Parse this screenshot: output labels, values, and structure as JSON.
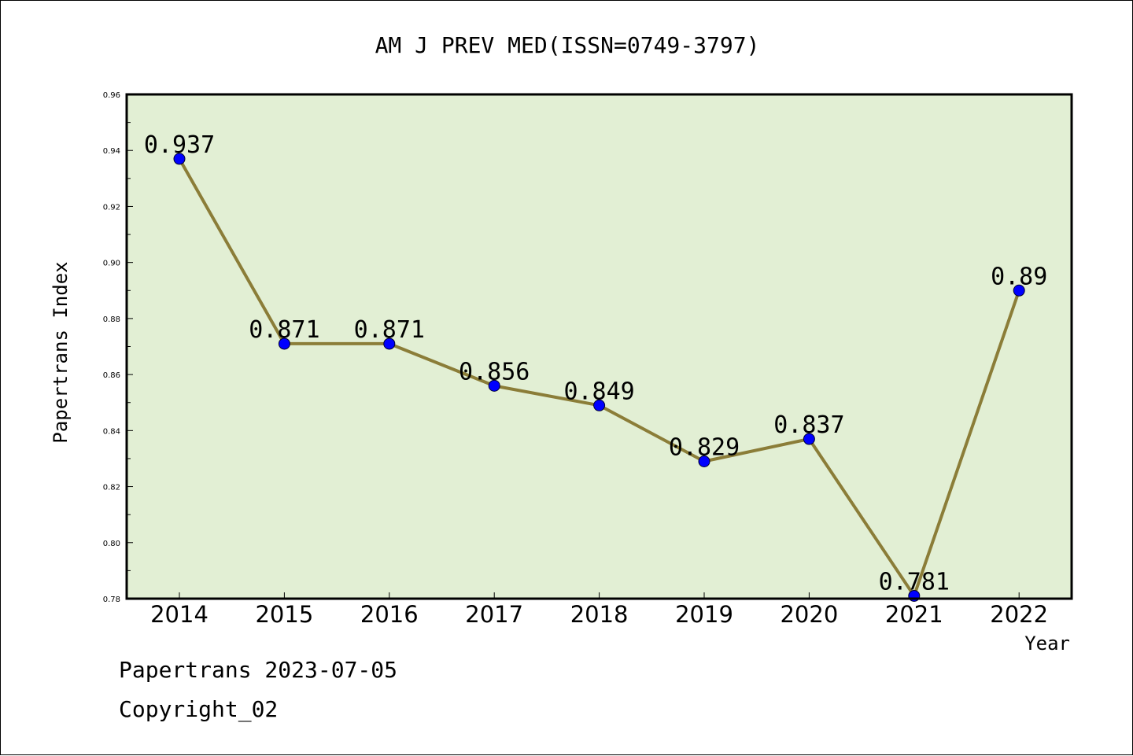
{
  "colors": {
    "plot_background": "#e2efd4",
    "line": "#8b7d38",
    "marker": "#0000ff",
    "axis": "#000000"
  },
  "footer": {
    "line1": "Papertrans 2023-07-05",
    "line2": "Copyright_02"
  },
  "chart_data": {
    "type": "line",
    "title": "AM J PREV MED(ISSN=0749-3797)",
    "xlabel": "Year",
    "ylabel": "Papertrans Index",
    "categories": [
      "2014",
      "2015",
      "2016",
      "2017",
      "2018",
      "2019",
      "2020",
      "2021",
      "2022"
    ],
    "values": [
      0.937,
      0.871,
      0.871,
      0.856,
      0.849,
      0.829,
      0.837,
      0.781,
      0.89
    ],
    "data_labels": [
      "0.937",
      "0.871",
      "0.871",
      "0.856",
      "0.849",
      "0.829",
      "0.837",
      "0.781",
      "0.89"
    ],
    "ylim": [
      0.78,
      0.96
    ],
    "yticks": [
      "0.78",
      "0.80",
      "0.82",
      "0.84",
      "0.86",
      "0.88",
      "0.90",
      "0.92",
      "0.94",
      "0.96"
    ],
    "grid": false,
    "legend": "none",
    "markers": "circle"
  }
}
